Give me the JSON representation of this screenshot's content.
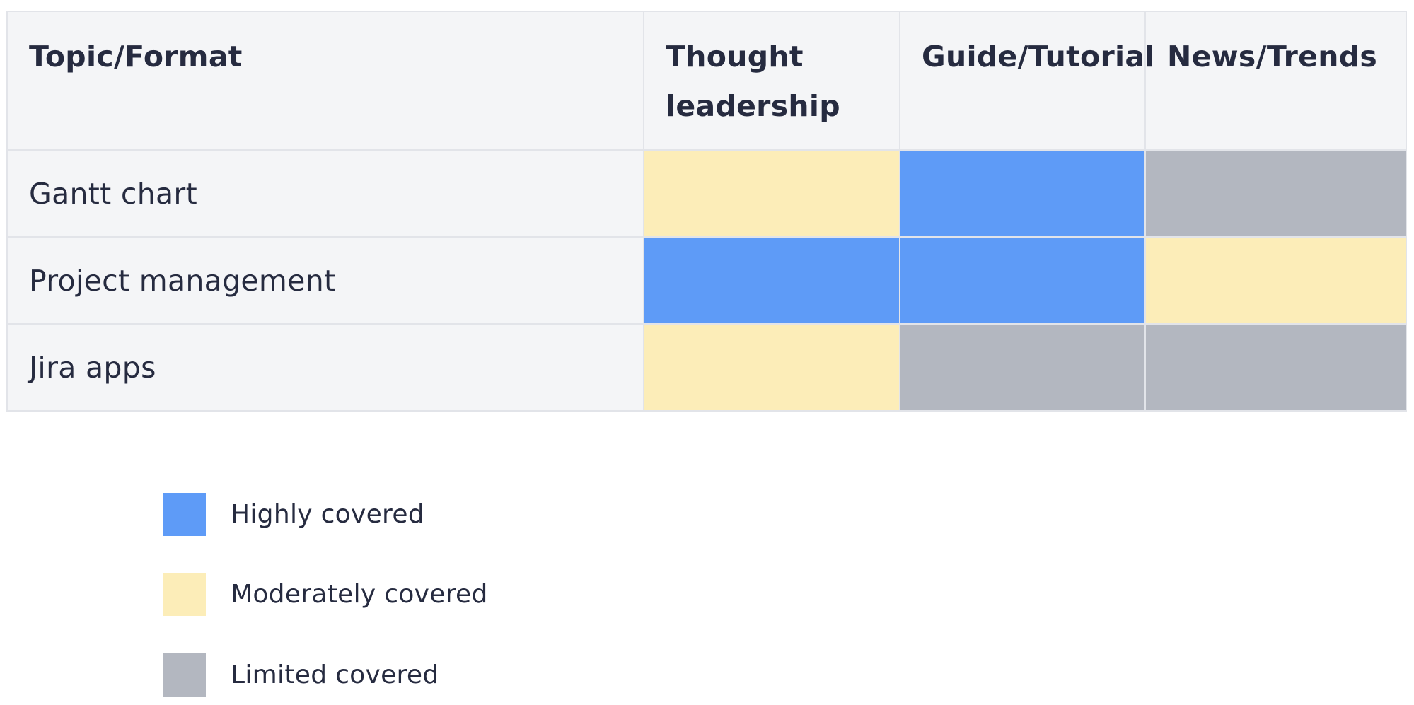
{
  "chart_data": {
    "type": "heatmap",
    "corner_label": "Topic/Format",
    "columns": [
      "Thought leadership",
      "Guide/Tutorial",
      "News/Trends"
    ],
    "rows": [
      {
        "label": "Gantt chart",
        "values": [
          "Moderately covered",
          "Highly covered",
          "Limited covered"
        ]
      },
      {
        "label": "Project management",
        "values": [
          "Highly covered",
          "Highly covered",
          "Moderately covered"
        ]
      },
      {
        "label": "Jira apps",
        "values": [
          "Moderately covered",
          "Limited covered",
          "Limited covered"
        ]
      }
    ],
    "legend": [
      {
        "label": "Highly covered",
        "color": "#5e9bf7"
      },
      {
        "label": "Moderately covered",
        "color": "#fcedb8"
      },
      {
        "label": "Limited covered",
        "color": "#b3b7c0"
      }
    ],
    "legend_placement": "bottom-left"
  }
}
